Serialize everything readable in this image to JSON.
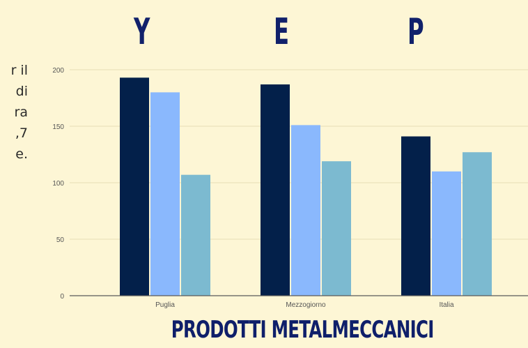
{
  "side_text": [
    "r il",
    "di",
    "ra",
    ",7",
    "e."
  ],
  "legend": [
    "Y",
    "E",
    "P"
  ],
  "colors": {
    "Y": "#03204a",
    "E": "#8ab8fd",
    "P": "#7cbad0",
    "grid": "#e8dfb5",
    "axis": "#5a5a5a",
    "tick_text": "#555555",
    "legend_text": "#11216b"
  },
  "chart_data": {
    "type": "bar",
    "title": "PRODOTTI METALMECCANICI",
    "categories": [
      "Puglia",
      "Mezzogiorno",
      "Italia"
    ],
    "series": [
      {
        "name": "Y",
        "values": [
          193,
          187,
          141
        ]
      },
      {
        "name": "E",
        "values": [
          180,
          151,
          110
        ]
      },
      {
        "name": "P",
        "values": [
          107,
          119,
          127
        ]
      }
    ],
    "ylim": [
      0,
      200
    ],
    "yticks": [
      0,
      50,
      100,
      150,
      200
    ],
    "grid": true,
    "legend_position": "top"
  }
}
